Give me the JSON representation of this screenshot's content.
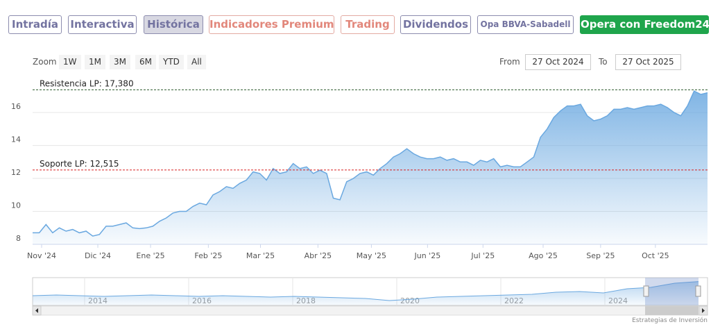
{
  "tabs": [
    "Intradía",
    "Interactiva",
    "Histórica",
    "Indicadores Premium",
    "Trading",
    "Dividendos",
    "Opa BBVA-Sabadell",
    "Opera con Freedom24"
  ],
  "zoom": {
    "label": "Zoom",
    "buttons": [
      "1W",
      "1M",
      "3M",
      "6M",
      "YTD",
      "All"
    ]
  },
  "range": {
    "from_label": "From",
    "from": "27 Oct 2024",
    "to_label": "To",
    "to": "27 Oct 2025"
  },
  "chart_data": {
    "type": "area",
    "values": [
      8.7,
      8.7,
      9.2,
      8.7,
      9.0,
      8.8,
      8.9,
      8.7,
      8.8,
      8.5,
      8.6,
      9.1,
      9.1,
      9.2,
      9.3,
      9.0,
      8.95,
      9.0,
      9.1,
      9.4,
      9.6,
      9.9,
      10.0,
      10.0,
      10.3,
      10.5,
      10.4,
      11.0,
      11.2,
      11.5,
      11.4,
      11.7,
      11.9,
      12.4,
      12.3,
      11.9,
      12.6,
      12.3,
      12.4,
      12.9,
      12.6,
      12.7,
      12.3,
      12.5,
      12.3,
      10.8,
      10.7,
      11.8,
      12.0,
      12.3,
      12.4,
      12.2,
      12.6,
      12.9,
      13.3,
      13.5,
      13.8,
      13.5,
      13.3,
      13.2,
      13.2,
      13.3,
      13.1,
      13.2,
      13.0,
      13.0,
      12.8,
      13.1,
      13.0,
      13.2,
      12.7,
      12.8,
      12.7,
      12.7,
      13.0,
      13.3,
      14.5,
      15.0,
      15.7,
      16.1,
      16.4,
      16.4,
      16.5,
      15.8,
      15.5,
      15.6,
      15.8,
      16.2,
      16.2,
      16.3,
      16.2,
      16.3,
      16.4,
      16.4,
      16.5,
      16.3,
      16.0,
      15.8,
      16.4,
      17.3,
      17.1,
      17.2
    ],
    "color": "#6aa8e0",
    "ylim": [
      8,
      17.9
    ],
    "yticks": [
      8,
      10,
      12,
      14,
      16
    ],
    "xlim": [
      0,
      101
    ],
    "xticks": [
      {
        "value": 1.35,
        "label": "Nov '24"
      },
      {
        "value": 9.76,
        "label": "Dic '24"
      },
      {
        "value": 17.65,
        "label": "Ene '25"
      },
      {
        "value": 26.3,
        "label": "Feb '25"
      },
      {
        "value": 34.1,
        "label": "Mar '25"
      },
      {
        "value": 42.7,
        "label": "Abr '25"
      },
      {
        "value": 50.7,
        "label": "May '25"
      },
      {
        "value": 59.1,
        "label": "Jun '25"
      },
      {
        "value": 67.4,
        "label": "Jul '25"
      },
      {
        "value": 76.4,
        "label": "Ago '25"
      },
      {
        "value": 85.0,
        "label": "Sep '25"
      },
      {
        "value": 93.2,
        "label": "Oct '25"
      }
    ],
    "grid": true,
    "annotations": [
      {
        "label": "Resistencia LP: 17,380",
        "value": 17.38,
        "color": "#2d5a2d"
      },
      {
        "label": "Soporte LP: 12,515",
        "value": 12.515,
        "color": "#d62020"
      }
    ],
    "navigator": {
      "values": [
        7,
        7.5,
        7,
        6.5,
        7,
        7.5,
        7,
        6.5,
        7,
        6.5,
        6,
        6.5,
        6,
        5.5,
        5,
        3.5,
        4.5,
        6,
        6.5,
        7,
        7.5,
        8,
        9.5,
        10,
        9,
        12,
        13,
        16,
        17.2
      ],
      "ylim": [
        0,
        19
      ],
      "xlim": [
        2013,
        2025.8
      ],
      "xticks": [
        2014,
        2016,
        2018,
        2020,
        2022,
        2024
      ]
    }
  },
  "credits": "Estrategias de Inversión"
}
